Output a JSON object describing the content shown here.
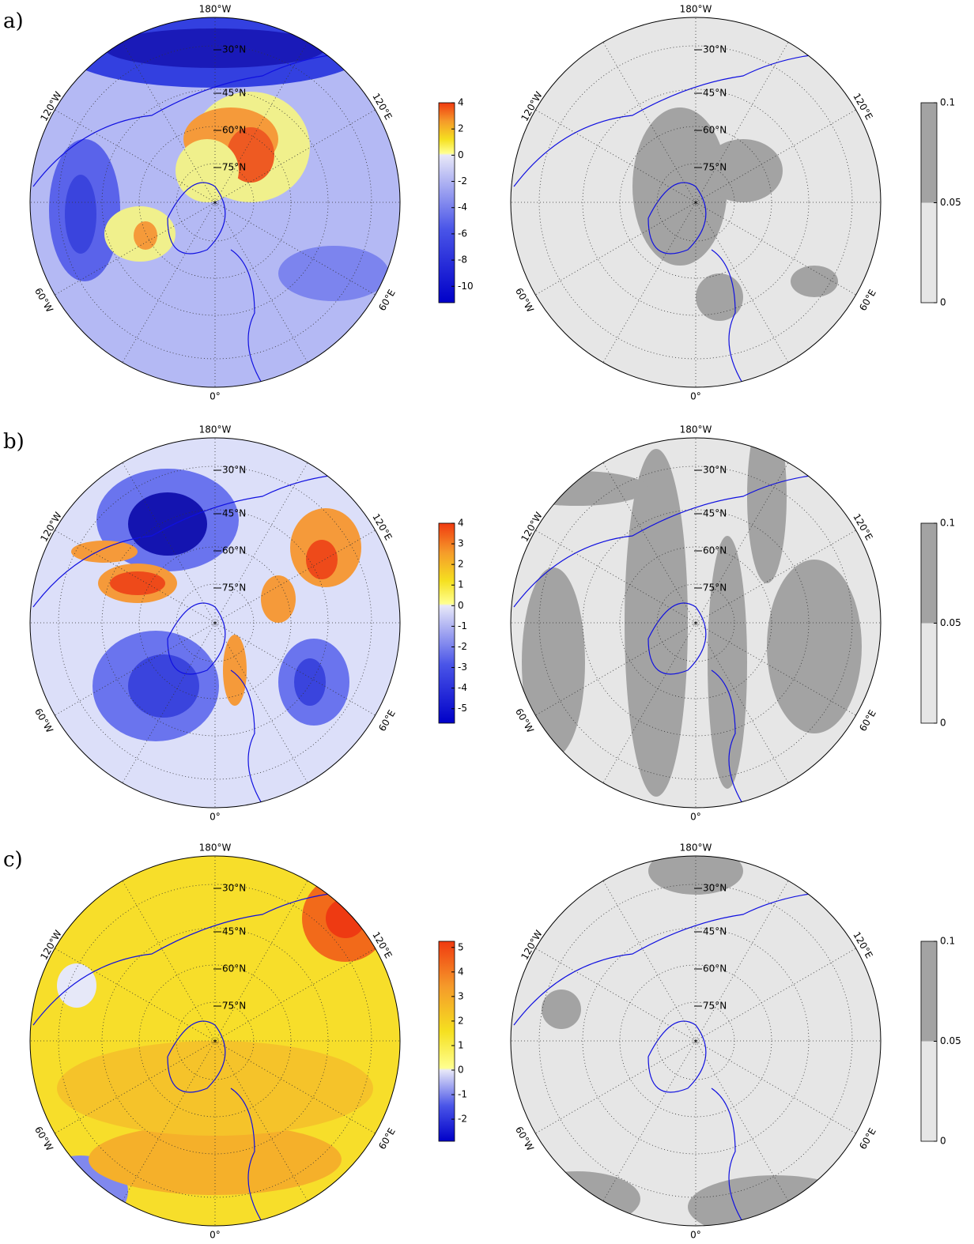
{
  "map_labels": {
    "longitude": [
      "180°W",
      "120°E",
      "60°E",
      "0°",
      "60°W",
      "120°W"
    ],
    "latitude": [
      "30°N",
      "45°N",
      "60°N",
      "75°N"
    ]
  },
  "panels": [
    {
      "label": "a)",
      "colorbar": {
        "lim": [
          -11.25,
          4
        ],
        "ticks": [
          4,
          2,
          0,
          -2,
          -4,
          -6,
          -8,
          -10
        ]
      },
      "significance_colorbar": {
        "lim": [
          0,
          0.1
        ],
        "ticks": [
          0.1,
          0.05,
          0
        ]
      }
    },
    {
      "label": "b)",
      "colorbar": {
        "lim": [
          -5.7,
          4
        ],
        "ticks": [
          4,
          3,
          2,
          1,
          0,
          -1,
          -2,
          -3,
          -4,
          -5
        ]
      },
      "significance_colorbar": {
        "lim": [
          0,
          0.1
        ],
        "ticks": [
          0.1,
          0.05,
          0
        ]
      }
    },
    {
      "label": "c)",
      "colorbar": {
        "lim": [
          -2.9,
          5.25
        ],
        "ticks": [
          5,
          4,
          3,
          2,
          1,
          0,
          -1,
          -2
        ]
      },
      "significance_colorbar": {
        "lim": [
          0,
          0.1
        ],
        "ticks": [
          0.1,
          0.05,
          0
        ]
      }
    }
  ]
}
